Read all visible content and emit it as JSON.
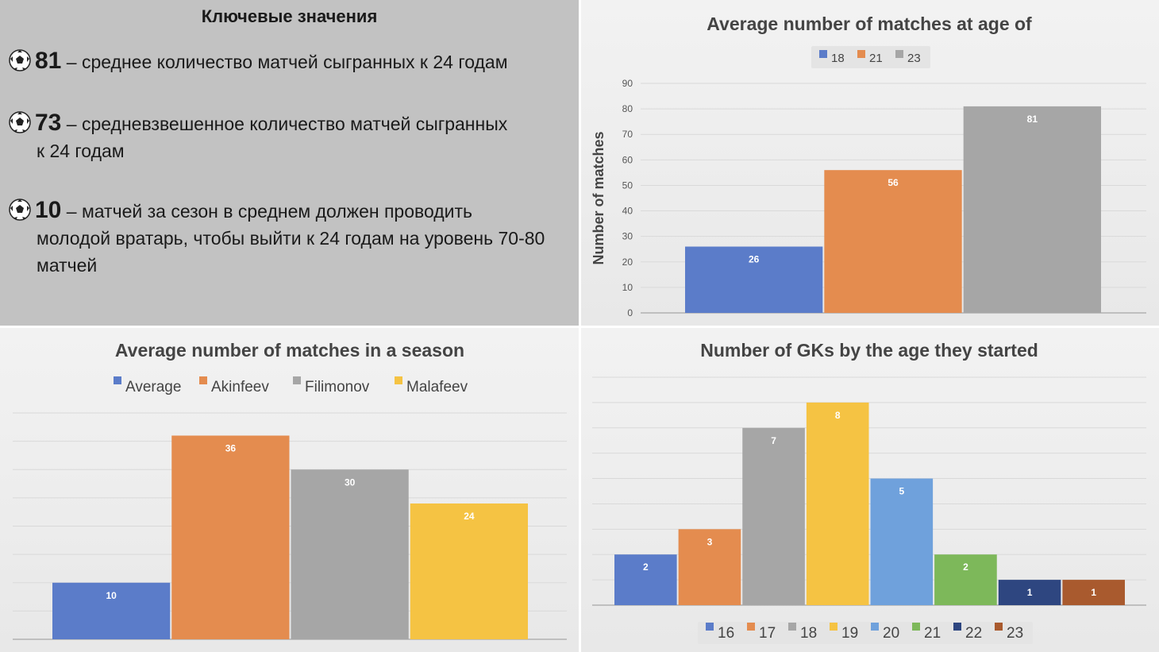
{
  "key_values": {
    "title": "Ключевые значения",
    "items": [
      {
        "number": "81",
        "text": " – среднее количество матчей сыгранных к 24 годам",
        "continuation": ""
      },
      {
        "number": "73",
        "text": " – средневзвешенное количество матчей сыгранных",
        "continuation": "к 24 годам"
      },
      {
        "number": "10",
        "text": " – матчей за сезон в среднем должен проводить",
        "continuation": "молодой вратарь, чтобы выйти к 24 годам на уровень 70-80 матчей"
      }
    ],
    "icon": "soccer-ball-icon"
  },
  "chart_data": [
    {
      "type": "bar",
      "title": "Average number of matches at age of",
      "ylabel": "Number of matches",
      "xlabel": "",
      "categories": [
        "18",
        "21",
        "23"
      ],
      "values": [
        26,
        56,
        81
      ],
      "colors": [
        "#5b7cc9",
        "#e48c4f",
        "#a6a6a6"
      ],
      "ylim": [
        0,
        90
      ],
      "yticks": [
        0,
        10,
        20,
        30,
        40,
        50,
        60,
        70,
        80,
        90
      ],
      "grid": true,
      "legend": "top"
    },
    {
      "type": "bar",
      "title": "Average number of matches in a season",
      "ylabel": "",
      "xlabel": "",
      "categories": [
        "Average",
        "Akinfeev",
        "Filimonov",
        "Malafeev"
      ],
      "values": [
        10,
        36,
        30,
        24
      ],
      "colors": [
        "#5b7cc9",
        "#e48c4f",
        "#a6a6a6",
        "#f5c343"
      ],
      "ylim": [
        0,
        40
      ],
      "grid": true,
      "legend": "top"
    },
    {
      "type": "bar",
      "title": "Number of GKs by the age they started",
      "ylabel": "",
      "xlabel": "",
      "categories": [
        "16",
        "17",
        "18",
        "19",
        "20",
        "21",
        "22",
        "23"
      ],
      "values": [
        2,
        3,
        7,
        8,
        5,
        2,
        1,
        1
      ],
      "colors": [
        "#5b7cc9",
        "#e48c4f",
        "#a6a6a6",
        "#f5c343",
        "#6fa1dc",
        "#7db85a",
        "#2e4680",
        "#a95a2e"
      ],
      "ylim": [
        0,
        9
      ],
      "grid": true,
      "legend": "bottom"
    }
  ]
}
